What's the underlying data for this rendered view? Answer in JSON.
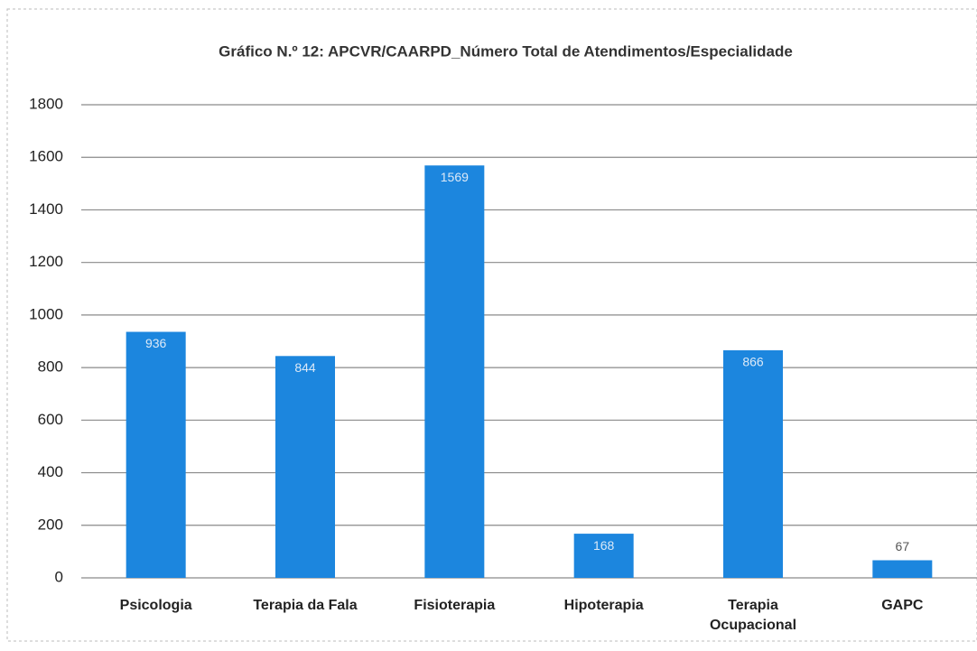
{
  "chart_data": {
    "type": "bar",
    "title": "Gráfico N.º 12: APCVR/CAARPD_Número Total de Atendimentos/Especialidade",
    "categories": [
      "Psicologia",
      "Terapia da Fala",
      "Fisioterapia",
      "Hipoterapia",
      "Terapia Ocupacional",
      "GAPC"
    ],
    "values": [
      936,
      844,
      1569,
      168,
      866,
      67
    ],
    "color": "#1c86de",
    "ylim": [
      0,
      1800
    ],
    "yticks": [
      0,
      200,
      400,
      600,
      800,
      1000,
      1200,
      1400,
      1600,
      1800
    ],
    "grid": true
  }
}
